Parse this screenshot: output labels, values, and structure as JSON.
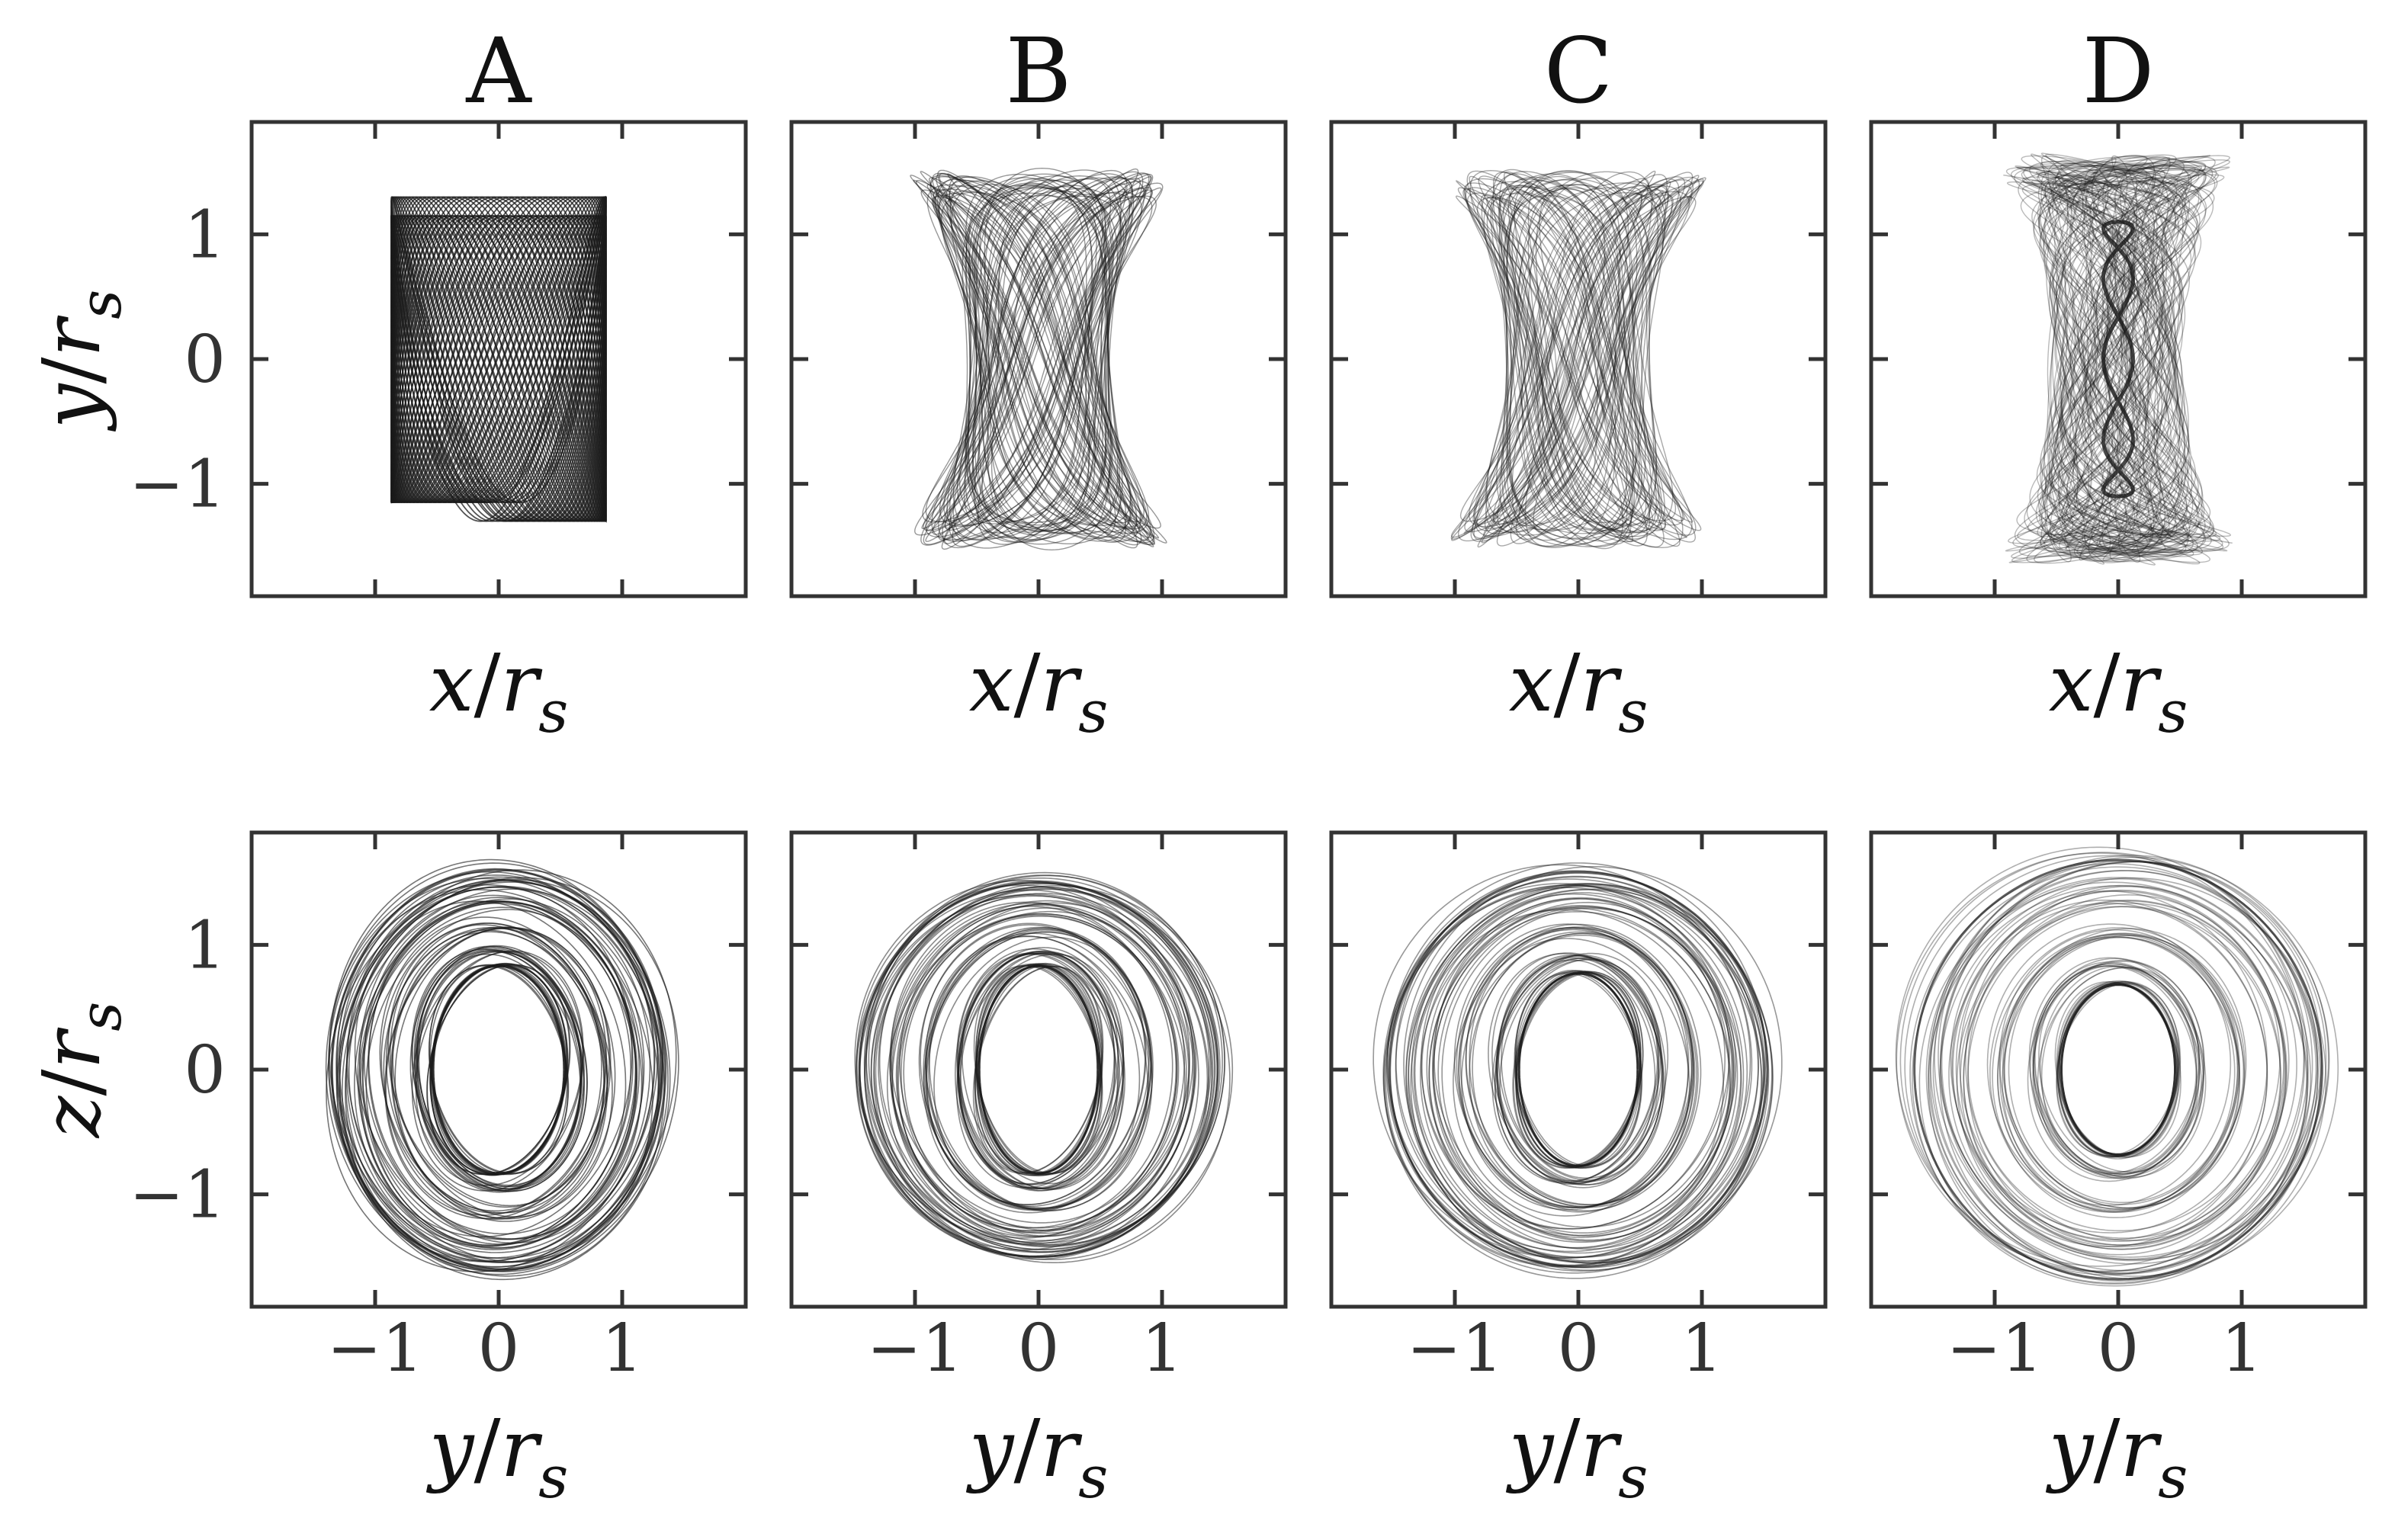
{
  "chart_data": [
    {
      "type": "line",
      "panel": "A",
      "row": "top",
      "title": "A",
      "xlabel": "x/r_s",
      "ylabel": "y/r_s",
      "xlim": [
        -2,
        2
      ],
      "ylim": [
        -1.9,
        1.9
      ],
      "xticks": [
        -1,
        0,
        1
      ],
      "yticks": [
        -1,
        0,
        1
      ],
      "xtick_labels": [],
      "ytick_labels": [
        "−1",
        "0",
        "1"
      ],
      "series": [
        {
          "kind": "lissajous-x",
          "ax": 0.87,
          "by": 1.33,
          "wx": 0.94,
          "wy": 2.0,
          "phase": 0.6,
          "density": 0.75
        }
      ]
    },
    {
      "type": "line",
      "panel": "B",
      "row": "top",
      "title": "B",
      "xlabel": "x/r_s",
      "ylabel": "",
      "xlim": [
        -2,
        2
      ],
      "ylim": [
        -1.9,
        1.9
      ],
      "xticks": [
        -1,
        0,
        1
      ],
      "yticks": [
        -1,
        0,
        1
      ],
      "xtick_labels": [],
      "ytick_labels": [],
      "series": [
        {
          "kind": "spool",
          "ax": 1.05,
          "by": 1.53,
          "waist": 0.78,
          "density": 0.45
        }
      ]
    },
    {
      "type": "line",
      "panel": "C",
      "row": "top",
      "title": "C",
      "xlabel": "x/r_s",
      "ylabel": "",
      "xlim": [
        -2,
        2
      ],
      "ylim": [
        -1.9,
        1.9
      ],
      "xticks": [
        -1,
        0,
        1
      ],
      "yticks": [
        -1,
        0,
        1
      ],
      "xtick_labels": [],
      "ytick_labels": [],
      "series": [
        {
          "kind": "spool",
          "ax": 1.05,
          "by": 1.52,
          "waist": 0.6,
          "density": 0.38
        }
      ]
    },
    {
      "type": "line",
      "panel": "D",
      "row": "top",
      "title": "D",
      "xlabel": "x/r_s",
      "ylabel": "",
      "xlim": [
        -2,
        2
      ],
      "ylim": [
        -1.9,
        1.9
      ],
      "xticks": [
        -1,
        0,
        1
      ],
      "yticks": [
        -1,
        0,
        1
      ],
      "xtick_labels": [],
      "ytick_labels": [],
      "series": [
        {
          "kind": "column",
          "ax": 1.05,
          "by": 1.65,
          "waist": 0.12,
          "density": 0.3
        }
      ]
    },
    {
      "type": "line",
      "panel": "A",
      "row": "bottom",
      "title": "",
      "xlabel": "y/r_s",
      "ylabel": "z/r_s",
      "xlim": [
        -2,
        2
      ],
      "ylim": [
        -1.9,
        1.9
      ],
      "xticks": [
        -1,
        0,
        1
      ],
      "yticks": [
        -1,
        0,
        1
      ],
      "xtick_labels": [
        "−1",
        "0",
        "1"
      ],
      "ytick_labels": [
        "−1",
        "0",
        "1"
      ],
      "series": [
        {
          "kind": "ring",
          "outer_x": 1.35,
          "outer_y": 1.6,
          "inner_x": 0.53,
          "inner_y": 0.83,
          "density": 0.6
        }
      ]
    },
    {
      "type": "line",
      "panel": "B",
      "row": "bottom",
      "title": "",
      "xlabel": "y/r_s",
      "ylabel": "",
      "xlim": [
        -2,
        2
      ],
      "ylim": [
        -1.9,
        1.9
      ],
      "xticks": [
        -1,
        0,
        1
      ],
      "yticks": [
        -1,
        0,
        1
      ],
      "xtick_labels": [
        "−1",
        "0",
        "1"
      ],
      "ytick_labels": [],
      "series": [
        {
          "kind": "ring",
          "outer_x": 1.45,
          "outer_y": 1.5,
          "inner_x": 0.48,
          "inner_y": 0.83,
          "density": 0.5
        }
      ]
    },
    {
      "type": "line",
      "panel": "C",
      "row": "bottom",
      "title": "",
      "xlabel": "y/r_s",
      "ylabel": "",
      "xlim": [
        -2,
        2
      ],
      "ylim": [
        -1.9,
        1.9
      ],
      "xticks": [
        -1,
        0,
        1
      ],
      "yticks": [
        -1,
        0,
        1
      ],
      "xtick_labels": [
        "−1",
        "0",
        "1"
      ],
      "ytick_labels": [],
      "series": [
        {
          "kind": "ring",
          "outer_x": 1.53,
          "outer_y": 1.58,
          "inner_x": 0.48,
          "inner_y": 0.77,
          "density": 0.45
        }
      ]
    },
    {
      "type": "line",
      "panel": "D",
      "row": "bottom",
      "title": "",
      "xlabel": "y/r_s",
      "ylabel": "",
      "xlim": [
        -2,
        2
      ],
      "ylim": [
        -1.9,
        1.9
      ],
      "xticks": [
        -1,
        0,
        1
      ],
      "yticks": [
        -1,
        0,
        1
      ],
      "xtick_labels": [
        "−1",
        "0",
        "1"
      ],
      "ytick_labels": [],
      "series": [
        {
          "kind": "ring",
          "outer_x": 1.65,
          "outer_y": 1.68,
          "inner_x": 0.46,
          "inner_y": 0.68,
          "density": 0.35
        }
      ]
    }
  ]
}
